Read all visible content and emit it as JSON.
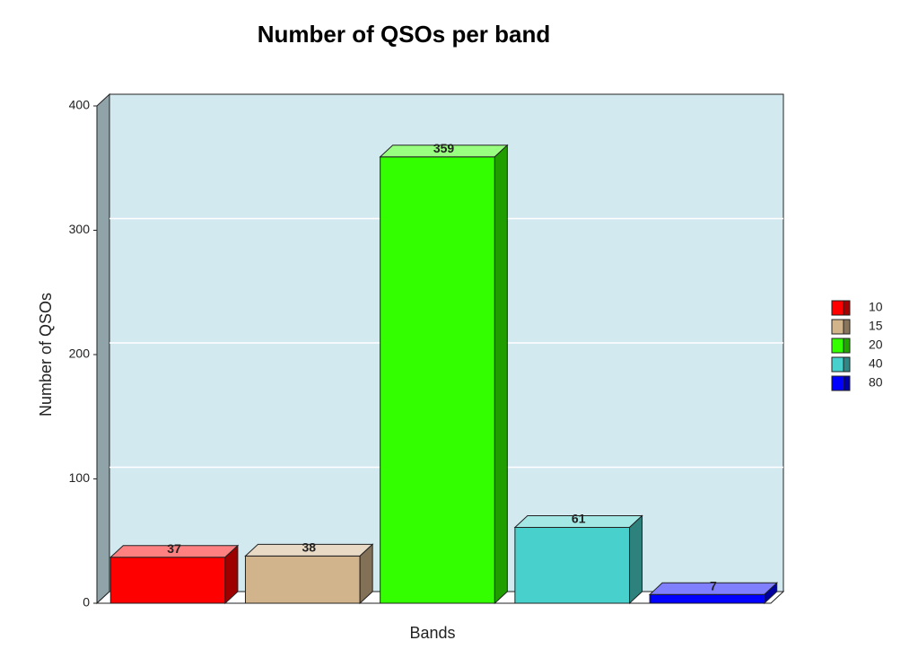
{
  "chart_data": {
    "type": "bar",
    "title": "Number of QSOs per band",
    "xlabel": "Bands",
    "ylabel": "Number of QSOs",
    "categories": [
      "10",
      "15",
      "20",
      "40",
      "80"
    ],
    "values": [
      37,
      38,
      359,
      61,
      7
    ],
    "colors": [
      "#ff0000",
      "#d2b48c",
      "#33ff00",
      "#48d1cc",
      "#0000ff"
    ],
    "ylim": [
      0,
      400
    ],
    "yticks": [
      0,
      100,
      200,
      300,
      400
    ],
    "grid": true,
    "legend": "right"
  }
}
